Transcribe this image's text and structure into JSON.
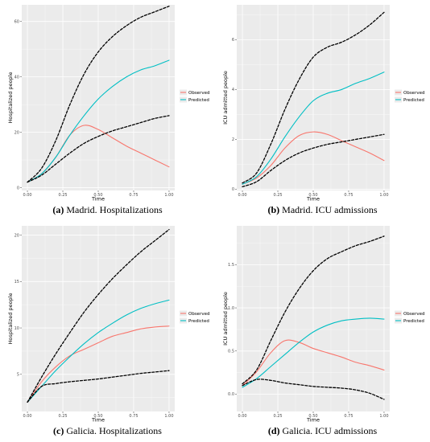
{
  "colors": {
    "observed": "#F8766D",
    "predicted": "#00BFC4",
    "bounds": "#000000",
    "panel_bg": "#EBEBEB",
    "grid": "#FFFFFF"
  },
  "chart_data": [
    {
      "type": "line",
      "caption_label": "(a)",
      "caption_text": "Madrid. Hospitalizations",
      "xlabel": "Time",
      "ylabel": "Hospitalized people",
      "xlim": [
        -0.04,
        1.04
      ],
      "ylim": [
        -1,
        66
      ],
      "xticks": [
        0,
        0.25,
        0.5,
        0.75,
        1
      ],
      "xtick_labels": [
        "0.00",
        "0.25",
        "0.50",
        "0.75",
        "1.00"
      ],
      "yticks": [
        0,
        20,
        40,
        60
      ],
      "ytick_labels": [
        "0",
        "20",
        "40",
        "60"
      ],
      "legend": [
        "Observed",
        "Predicted"
      ],
      "series": [
        {
          "name": "Observed",
          "style": "observed",
          "x": [
            0,
            0.1,
            0.2,
            0.3,
            0.4,
            0.5,
            0.6,
            0.7,
            0.8,
            0.9,
            1.0
          ],
          "y": [
            2,
            5,
            11,
            19,
            22.5,
            21,
            18,
            15,
            12.5,
            10,
            7.5
          ]
        },
        {
          "name": "Predicted",
          "style": "predicted",
          "x": [
            0,
            0.1,
            0.2,
            0.3,
            0.4,
            0.5,
            0.6,
            0.7,
            0.8,
            0.9,
            1.0
          ],
          "y": [
            2,
            5,
            11,
            19,
            26,
            32,
            36.5,
            40,
            42.5,
            44,
            46
          ]
        },
        {
          "style": "bounds",
          "x": [
            0,
            0.1,
            0.2,
            0.3,
            0.4,
            0.5,
            0.6,
            0.7,
            0.8,
            0.9,
            1.0
          ],
          "y": [
            2,
            7,
            17,
            30,
            41,
            49,
            54.5,
            58.5,
            61.5,
            63.5,
            65.5
          ]
        },
        {
          "style": "bounds",
          "x": [
            0,
            0.1,
            0.2,
            0.3,
            0.4,
            0.5,
            0.6,
            0.7,
            0.8,
            0.9,
            1.0
          ],
          "y": [
            2,
            4.5,
            8.5,
            12.5,
            16,
            18.5,
            20.5,
            22,
            23.5,
            25,
            26
          ]
        }
      ]
    },
    {
      "type": "line",
      "caption_label": "(b)",
      "caption_text": "Madrid. ICU admissions",
      "xlabel": "Time",
      "ylabel": "ICU admitted people",
      "xlim": [
        -0.04,
        1.04
      ],
      "ylim": [
        -0.05,
        7.4
      ],
      "xticks": [
        0,
        0.25,
        0.5,
        0.75,
        1
      ],
      "xtick_labels": [
        "0.00",
        "0.25",
        "0.50",
        "0.75",
        "1.00"
      ],
      "yticks": [
        0,
        2,
        4,
        6
      ],
      "ytick_labels": [
        "0",
        "2",
        "4",
        "6"
      ],
      "legend": [
        "Observed",
        "Predicted"
      ],
      "series": [
        {
          "name": "Observed",
          "style": "observed",
          "x": [
            0,
            0.1,
            0.2,
            0.3,
            0.4,
            0.5,
            0.6,
            0.7,
            0.8,
            0.9,
            1.0
          ],
          "y": [
            0.2,
            0.45,
            0.95,
            1.65,
            2.15,
            2.3,
            2.2,
            1.95,
            1.7,
            1.45,
            1.15
          ]
        },
        {
          "name": "Predicted",
          "style": "predicted",
          "x": [
            0,
            0.1,
            0.2,
            0.3,
            0.4,
            0.5,
            0.6,
            0.7,
            0.8,
            0.9,
            1.0
          ],
          "y": [
            0.2,
            0.5,
            1.2,
            2.1,
            2.9,
            3.55,
            3.85,
            4.0,
            4.25,
            4.45,
            4.7
          ]
        },
        {
          "style": "bounds",
          "x": [
            0,
            0.1,
            0.2,
            0.3,
            0.4,
            0.5,
            0.6,
            0.7,
            0.8,
            0.9,
            1.0
          ],
          "y": [
            0.25,
            0.65,
            1.8,
            3.2,
            4.4,
            5.3,
            5.7,
            5.9,
            6.2,
            6.6,
            7.1
          ]
        },
        {
          "style": "bounds",
          "x": [
            0,
            0.1,
            0.2,
            0.3,
            0.4,
            0.5,
            0.6,
            0.7,
            0.8,
            0.9,
            1.0
          ],
          "y": [
            0.1,
            0.3,
            0.75,
            1.15,
            1.45,
            1.65,
            1.8,
            1.9,
            2.0,
            2.1,
            2.2
          ]
        }
      ]
    },
    {
      "type": "line",
      "caption_label": "(c)",
      "caption_text": "Galicia. Hospitalizations",
      "xlabel": "Time",
      "ylabel": "Hospitalized people",
      "xlim": [
        -0.04,
        1.04
      ],
      "ylim": [
        1,
        21
      ],
      "xticks": [
        0,
        0.25,
        0.5,
        0.75,
        1
      ],
      "xtick_labels": [
        "0.00",
        "0.25",
        "0.50",
        "0.75",
        "1.00"
      ],
      "yticks": [
        5,
        10,
        15,
        20
      ],
      "ytick_labels": [
        "5",
        "10",
        "15",
        "20"
      ],
      "legend": [
        "Observed",
        "Predicted"
      ],
      "series": [
        {
          "name": "Observed",
          "style": "observed",
          "x": [
            0,
            0.1,
            0.2,
            0.3,
            0.4,
            0.5,
            0.6,
            0.7,
            0.8,
            0.9,
            1.0
          ],
          "y": [
            2,
            4.2,
            5.8,
            7.0,
            7.7,
            8.4,
            9.1,
            9.5,
            9.9,
            10.1,
            10.2
          ]
        },
        {
          "name": "Predicted",
          "style": "predicted",
          "x": [
            0,
            0.1,
            0.2,
            0.3,
            0.4,
            0.5,
            0.6,
            0.7,
            0.8,
            0.9,
            1.0
          ],
          "y": [
            2,
            3.7,
            5.4,
            6.9,
            8.3,
            9.5,
            10.5,
            11.4,
            12.1,
            12.6,
            13.0
          ]
        },
        {
          "style": "bounds",
          "x": [
            0,
            0.1,
            0.2,
            0.3,
            0.4,
            0.5,
            0.6,
            0.7,
            0.8,
            0.9,
            1.0
          ],
          "y": [
            2,
            4.7,
            7.2,
            9.5,
            11.7,
            13.6,
            15.3,
            16.8,
            18.2,
            19.4,
            20.6
          ]
        },
        {
          "style": "bounds",
          "x": [
            0,
            0.1,
            0.2,
            0.3,
            0.4,
            0.5,
            0.6,
            0.7,
            0.8,
            0.9,
            1.0
          ],
          "y": [
            2,
            3.7,
            4.0,
            4.2,
            4.35,
            4.5,
            4.7,
            4.9,
            5.1,
            5.25,
            5.4
          ]
        }
      ]
    },
    {
      "type": "line",
      "caption_label": "(d)",
      "caption_text": "Galicia. ICU admissions",
      "xlabel": "Time",
      "ylabel": "ICU admitted people",
      "xlim": [
        -0.04,
        1.04
      ],
      "ylim": [
        -0.2,
        1.95
      ],
      "xticks": [
        0,
        0.25,
        0.5,
        0.75,
        1
      ],
      "xtick_labels": [
        "0.00",
        "0.25",
        "0.50",
        "0.75",
        "1.00"
      ],
      "yticks": [
        0,
        0.5,
        1,
        1.5
      ],
      "ytick_labels": [
        "0.0",
        "0.5",
        "1.0",
        "1.5"
      ],
      "legend": [
        "Observed",
        "Predicted"
      ],
      "series": [
        {
          "name": "Observed",
          "style": "observed",
          "x": [
            0,
            0.1,
            0.2,
            0.3,
            0.4,
            0.5,
            0.6,
            0.7,
            0.8,
            0.9,
            1.0
          ],
          "y": [
            0.1,
            0.26,
            0.48,
            0.62,
            0.6,
            0.53,
            0.48,
            0.43,
            0.37,
            0.33,
            0.28
          ]
        },
        {
          "name": "Predicted",
          "style": "predicted",
          "x": [
            0,
            0.1,
            0.2,
            0.3,
            0.4,
            0.5,
            0.6,
            0.7,
            0.8,
            0.9,
            1.0
          ],
          "y": [
            0.08,
            0.18,
            0.32,
            0.46,
            0.6,
            0.72,
            0.8,
            0.85,
            0.87,
            0.88,
            0.87
          ]
        },
        {
          "style": "bounds",
          "x": [
            0,
            0.1,
            0.2,
            0.3,
            0.4,
            0.5,
            0.6,
            0.7,
            0.8,
            0.9,
            1.0
          ],
          "y": [
            0.12,
            0.28,
            0.62,
            0.95,
            1.22,
            1.43,
            1.57,
            1.65,
            1.72,
            1.77,
            1.83
          ]
        },
        {
          "style": "bounds",
          "x": [
            0,
            0.1,
            0.2,
            0.3,
            0.4,
            0.5,
            0.6,
            0.7,
            0.8,
            0.9,
            1.0
          ],
          "y": [
            0.1,
            0.17,
            0.16,
            0.13,
            0.11,
            0.09,
            0.08,
            0.07,
            0.05,
            0.01,
            -0.06
          ]
        }
      ]
    }
  ]
}
